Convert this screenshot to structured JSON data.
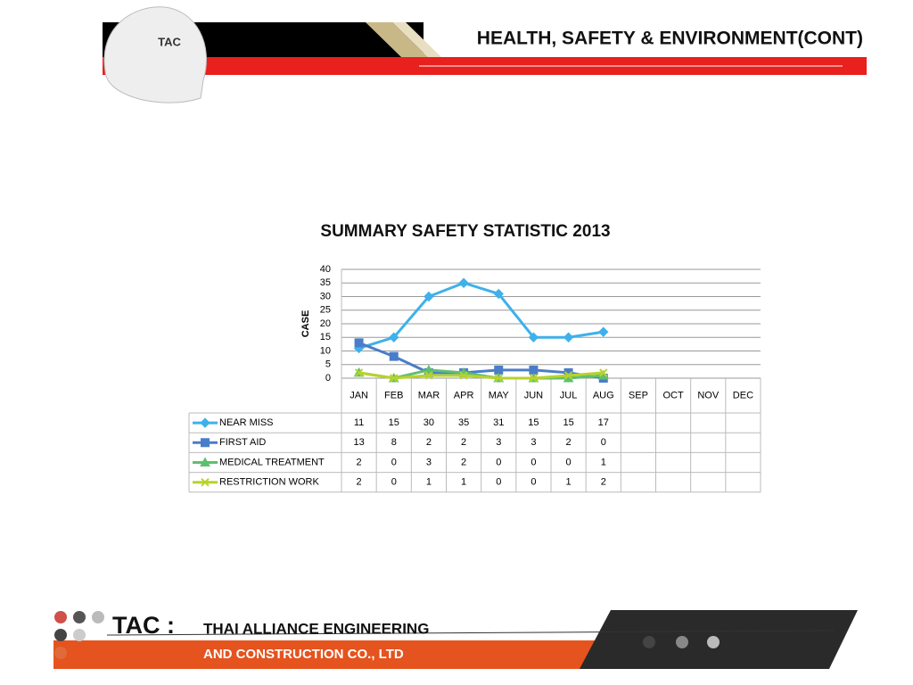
{
  "header": {
    "title": "HEALTH, SAFETY & ENVIRONMENT(CONT)",
    "logo": "TAC"
  },
  "chart_data": {
    "type": "line",
    "title": "SUMMARY SAFETY STATISTIC  2013",
    "y_label": "CASE",
    "categories": [
      "JAN",
      "FEB",
      "MAR",
      "APR",
      "MAY",
      "JUN",
      "JUL",
      "AUG",
      "SEP",
      "OCT",
      "NOV",
      "DEC"
    ],
    "series": [
      {
        "name": "NEAR MISS",
        "color": "#3eb1ea",
        "marker": "diamond",
        "values": [
          11,
          15,
          30,
          35,
          31,
          15,
          15,
          17,
          null,
          null,
          null,
          null
        ]
      },
      {
        "name": "FIRST AID",
        "color": "#4a7dc9",
        "marker": "square",
        "values": [
          13,
          8,
          2,
          2,
          3,
          3,
          2,
          0,
          null,
          null,
          null,
          null
        ]
      },
      {
        "name": "MEDICAL TREATMENT",
        "color": "#5ec06c",
        "marker": "triangle",
        "values": [
          2,
          0,
          3,
          2,
          0,
          0,
          0,
          1,
          null,
          null,
          null,
          null
        ]
      },
      {
        "name": "RESTRICTION  WORK",
        "color": "#b9d22b",
        "marker": "x",
        "values": [
          2,
          0,
          1,
          1,
          0,
          0,
          1,
          2,
          null,
          null,
          null,
          null
        ]
      }
    ],
    "ylim": [
      0,
      40
    ],
    "yticks": [
      0,
      5,
      10,
      15,
      20,
      25,
      30,
      35,
      40
    ],
    "grid": true
  },
  "footer": {
    "brand": "TAC :",
    "line1": "THAI ALLIANCE ENGINEERING",
    "line2": "AND CONSTRUCTION CO., LTD"
  }
}
